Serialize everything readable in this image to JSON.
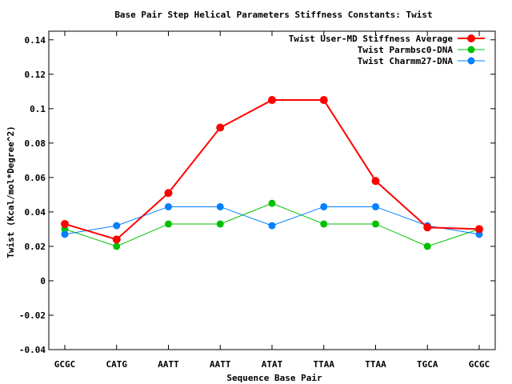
{
  "chart_data": {
    "type": "line",
    "title": "Base Pair Step Helical Parameters Stiffness Constants: Twist",
    "xlabel": "Sequence Base Pair",
    "ylabel": "Twist (Kcal/mol*Degree^2)",
    "categories": [
      "GCGC",
      "CATG",
      "AATT",
      "AATT",
      "ATAT",
      "TTAA",
      "TTAA",
      "TGCA",
      "GCGC"
    ],
    "ylim": [
      -0.04,
      0.145
    ],
    "yticks": [
      -0.04,
      -0.02,
      0,
      0.02,
      0.04,
      0.06,
      0.08,
      0.1,
      0.12,
      0.14
    ],
    "ytick_labels": [
      "-0.04",
      "-0.02",
      "0",
      "0.02",
      "0.04",
      "0.06",
      "0.08",
      "0.1",
      "0.12",
      "0.14"
    ],
    "grid": false,
    "legend_position": "top-right",
    "series": [
      {
        "name": "Twist User-MD Stiffness Average",
        "color": "#ff0000",
        "values": [
          0.033,
          0.024,
          0.051,
          0.089,
          0.105,
          0.105,
          0.058,
          0.031,
          0.03
        ]
      },
      {
        "name": "Twist Parmbsc0-DNA",
        "color": "#00c000",
        "values": [
          0.03,
          0.02,
          0.033,
          0.033,
          0.045,
          0.033,
          0.033,
          0.02,
          0.03
        ]
      },
      {
        "name": "Twist Charmm27-DNA",
        "color": "#0080ff",
        "values": [
          0.027,
          0.032,
          0.043,
          0.043,
          0.032,
          0.043,
          0.043,
          0.032,
          0.027
        ]
      }
    ]
  }
}
